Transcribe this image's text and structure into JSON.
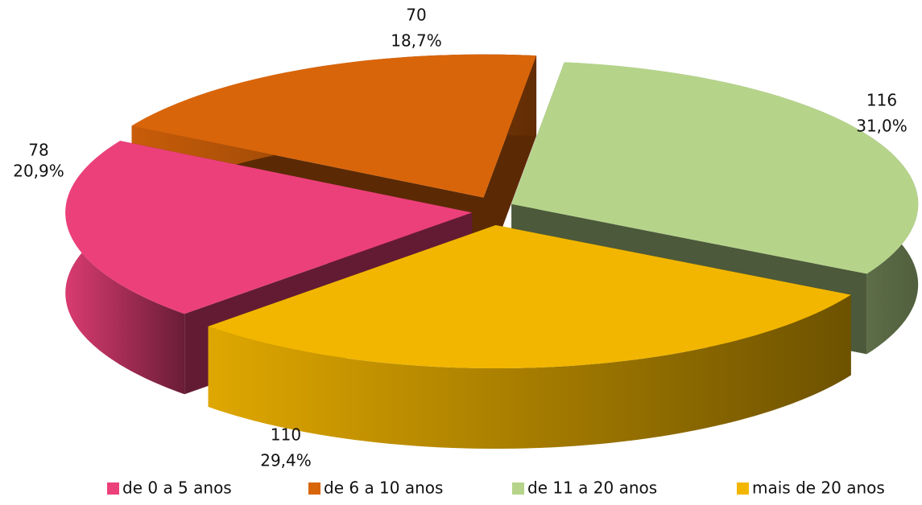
{
  "chart_data": {
    "type": "pie3d",
    "categories": [
      "de 0 a 5 anos",
      "de 6 a 10 anos",
      "de 11 a 20 anos",
      "mais de 20 anos"
    ],
    "values": [
      78,
      70,
      116,
      110
    ],
    "percent_labels": [
      "20,9%",
      "18,7%",
      "31,0%",
      "29,4%"
    ],
    "colors": [
      "#EC407A",
      "#D9650A",
      "#B5D48A",
      "#F2B600"
    ],
    "legend": "bottom"
  }
}
